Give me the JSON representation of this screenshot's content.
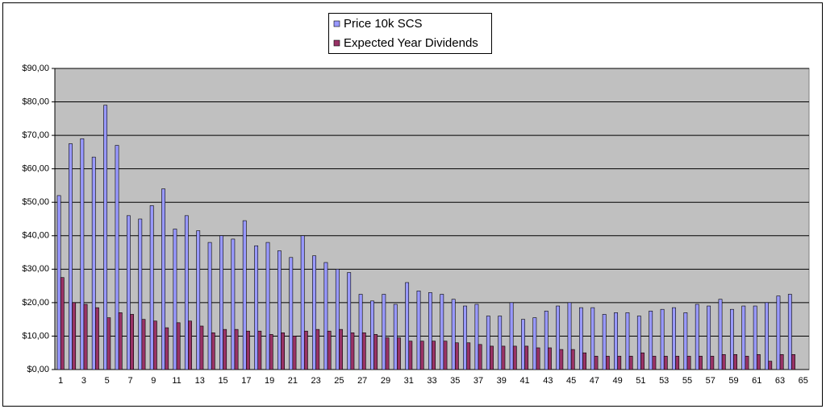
{
  "chart_data": {
    "type": "bar",
    "categories": [
      1,
      null,
      3,
      null,
      5,
      null,
      7,
      null,
      9,
      null,
      11,
      null,
      13,
      null,
      15,
      null,
      17,
      null,
      19,
      null,
      21,
      null,
      23,
      null,
      25,
      null,
      27,
      null,
      29,
      null,
      31,
      null,
      33,
      null,
      35,
      null,
      37,
      null,
      39,
      null,
      41,
      null,
      43,
      null,
      45,
      null,
      47,
      null,
      49,
      null,
      51,
      null,
      53,
      null,
      55,
      null,
      57,
      null,
      59,
      null,
      61,
      null,
      63,
      null,
      65
    ],
    "series": [
      {
        "name": "Price 10k SCS",
        "color": "#9999ff",
        "values": [
          52,
          67.5,
          69,
          63.5,
          79,
          67,
          46,
          45,
          49,
          54,
          42,
          46,
          41.5,
          38,
          40,
          39,
          44.5,
          37,
          38,
          35.5,
          33.5,
          40,
          34,
          32,
          30,
          29,
          22.5,
          20.5,
          22.5,
          19.5,
          26,
          23.5,
          23,
          22.5,
          21,
          19,
          19.5,
          16,
          16,
          20,
          15,
          15.5,
          17.5,
          19,
          20,
          18.5,
          18.5,
          16.5,
          17,
          17,
          16,
          17.5,
          18,
          18.5,
          17,
          19.5,
          19,
          21,
          18,
          19,
          19,
          20,
          22,
          22.5,
          null
        ]
      },
      {
        "name": "Expected Year Dividends",
        "color": "#993366",
        "values": [
          27.5,
          20,
          19.5,
          18.5,
          15.5,
          17,
          16.5,
          15,
          14.5,
          12.5,
          14,
          14.5,
          13,
          11,
          12,
          12,
          11.5,
          11.5,
          10.5,
          11,
          10,
          11.5,
          12,
          11.5,
          12,
          11,
          11,
          10.5,
          9.5,
          9.5,
          8.5,
          8.5,
          8.5,
          8.5,
          8,
          8,
          7.5,
          7,
          7,
          7,
          7,
          6.5,
          6.5,
          6,
          6,
          5,
          4,
          4,
          4,
          4,
          5,
          4,
          4,
          4,
          4,
          4,
          4,
          4.5,
          4.5,
          4,
          4.5,
          2.5,
          4.5,
          4.5,
          null
        ]
      }
    ],
    "ylim": [
      0,
      90
    ],
    "yticks": [
      {
        "value": 0,
        "label": "$0,00"
      },
      {
        "value": 10,
        "label": "$10,00"
      },
      {
        "value": 20,
        "label": "$20,00"
      },
      {
        "value": 30,
        "label": "$30,00"
      },
      {
        "value": 40,
        "label": "$40,00"
      },
      {
        "value": 50,
        "label": "$50,00"
      },
      {
        "value": 60,
        "label": "$60,00"
      },
      {
        "value": 70,
        "label": "$70,00"
      },
      {
        "value": 80,
        "label": "$80,00"
      },
      {
        "value": 90,
        "label": "$90,00"
      }
    ],
    "grid": true
  }
}
